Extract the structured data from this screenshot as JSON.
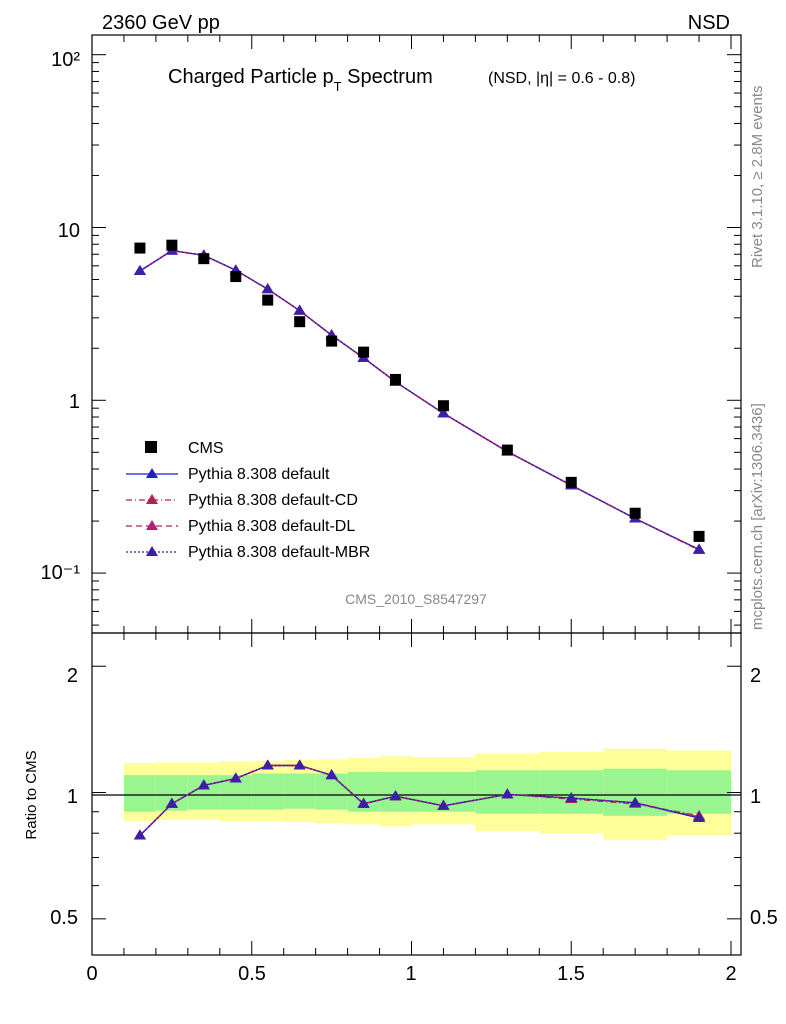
{
  "header": {
    "left": "2360 GeV pp",
    "right": "NSD"
  },
  "side_text": {
    "top": "Rivet 3.1.10, ≥ 2.8M events",
    "bottom": "mcplots.cern.ch [arXiv:1306.3436]"
  },
  "watermark": "CMS_2010_S8547297",
  "colors": {
    "cms": "#000000",
    "default": "#1f1fcc",
    "cd": "#b0224f",
    "dl": "#b0226f",
    "mbr": "#3a1fa8",
    "band_inner": "#99f58f",
    "band_outer": "#ffff99"
  },
  "chart_data": [
    {
      "type": "scatter",
      "title": "Charged Particle p",
      "title_sub": "T",
      "title_tail": " Spectrum",
      "title_extra": "(NSD, |η| = 0.6 - 0.8)",
      "y_scale": "log",
      "ylim": [
        0.045,
        130
      ],
      "xlim": [
        0,
        2.05
      ],
      "y_tick_labels": [
        "10⁻¹",
        "1",
        "10",
        "10²"
      ],
      "legend_position": "bottom-left",
      "series": [
        {
          "name": "CMS",
          "style": "markers-square",
          "x": [
            0.15,
            0.25,
            0.35,
            0.45,
            0.55,
            0.65,
            0.75,
            0.85,
            0.95,
            1.1,
            1.3,
            1.5,
            1.7,
            1.9
          ],
          "y": [
            7.6,
            7.9,
            6.6,
            5.2,
            3.8,
            2.85,
            2.2,
            1.9,
            1.32,
            0.93,
            0.515,
            0.335,
            0.222,
            0.163
          ]
        },
        {
          "name": "Pythia 8.308 default",
          "style": "solid",
          "x": [
            0.15,
            0.25,
            0.35,
            0.45,
            0.55,
            0.65,
            0.75,
            0.85,
            0.95,
            1.1,
            1.3,
            1.5,
            1.7,
            1.9
          ],
          "y": [
            5.6,
            7.35,
            6.9,
            5.65,
            4.4,
            3.3,
            2.38,
            1.76,
            1.28,
            0.84,
            0.505,
            0.322,
            0.207,
            0.137
          ]
        },
        {
          "name": "Pythia 8.308 default-CD",
          "style": "dashdot",
          "x": [
            0.15,
            0.25,
            0.35,
            0.45,
            0.55,
            0.65,
            0.75,
            0.85,
            0.95,
            1.1,
            1.3,
            1.5,
            1.7,
            1.9
          ],
          "y": [
            5.6,
            7.35,
            6.9,
            5.65,
            4.4,
            3.3,
            2.38,
            1.76,
            1.28,
            0.84,
            0.505,
            0.322,
            0.207,
            0.136
          ]
        },
        {
          "name": "Pythia 8.308 default-DL",
          "style": "dashed",
          "x": [
            0.15,
            0.25,
            0.35,
            0.45,
            0.55,
            0.65,
            0.75,
            0.85,
            0.95,
            1.1,
            1.3,
            1.5,
            1.7,
            1.9
          ],
          "y": [
            5.6,
            7.35,
            6.9,
            5.65,
            4.4,
            3.3,
            2.38,
            1.76,
            1.28,
            0.84,
            0.505,
            0.322,
            0.207,
            0.137
          ]
        },
        {
          "name": "Pythia 8.308 default-MBR",
          "style": "dotted",
          "x": [
            0.15,
            0.25,
            0.35,
            0.45,
            0.55,
            0.65,
            0.75,
            0.85,
            0.95,
            1.1,
            1.3,
            1.5,
            1.7,
            1.9
          ],
          "y": [
            5.6,
            7.35,
            6.9,
            5.65,
            4.4,
            3.3,
            2.38,
            1.76,
            1.28,
            0.84,
            0.505,
            0.322,
            0.207,
            0.137
          ]
        }
      ]
    },
    {
      "type": "line",
      "ylabel": "Ratio to CMS",
      "y_scale": "log",
      "ylim": [
        0.41,
        2.4
      ],
      "xlim": [
        0,
        2.05
      ],
      "x_ticks": [
        0,
        0.5,
        1,
        1.5,
        2
      ],
      "x_tick_labels": [
        "0",
        "0.5",
        "1",
        "1.5",
        "2"
      ],
      "y_ticks": [
        0.5,
        1,
        2
      ],
      "y_tick_labels": [
        "0.5",
        "1",
        "2"
      ],
      "bins": [
        [
          0.1,
          0.2
        ],
        [
          0.2,
          0.3
        ],
        [
          0.3,
          0.4
        ],
        [
          0.4,
          0.5
        ],
        [
          0.5,
          0.6
        ],
        [
          0.6,
          0.7
        ],
        [
          0.7,
          0.8
        ],
        [
          0.8,
          0.9
        ],
        [
          0.9,
          1.0
        ],
        [
          1.0,
          1.2
        ],
        [
          1.2,
          1.4
        ],
        [
          1.4,
          1.6
        ],
        [
          1.6,
          1.8
        ],
        [
          1.8,
          2.0
        ]
      ],
      "band_inner": [
        [
          0.9,
          1.1
        ],
        [
          0.905,
          1.1
        ],
        [
          0.91,
          1.1
        ],
        [
          0.91,
          1.1
        ],
        [
          0.91,
          1.11
        ],
        [
          0.915,
          1.11
        ],
        [
          0.91,
          1.11
        ],
        [
          0.9,
          1.12
        ],
        [
          0.9,
          1.12
        ],
        [
          0.9,
          1.12
        ],
        [
          0.89,
          1.13
        ],
        [
          0.89,
          1.13
        ],
        [
          0.88,
          1.14
        ],
        [
          0.89,
          1.13
        ]
      ],
      "band_outer": [
        [
          0.855,
          1.175
        ],
        [
          0.86,
          1.18
        ],
        [
          0.86,
          1.18
        ],
        [
          0.855,
          1.185
        ],
        [
          0.855,
          1.19
        ],
        [
          0.85,
          1.195
        ],
        [
          0.845,
          1.2
        ],
        [
          0.84,
          1.21
        ],
        [
          0.83,
          1.22
        ],
        [
          0.84,
          1.215
        ],
        [
          0.81,
          1.24
        ],
        [
          0.8,
          1.25
        ],
        [
          0.77,
          1.27
        ],
        [
          0.79,
          1.26
        ]
      ],
      "series": [
        {
          "name": "Pythia 8.308 default",
          "style": "solid",
          "x": [
            0.15,
            0.25,
            0.35,
            0.45,
            0.55,
            0.65,
            0.75,
            0.85,
            0.95,
            1.1,
            1.3,
            1.5,
            1.7,
            1.9
          ],
          "y": [
            0.79,
            0.94,
            1.04,
            1.08,
            1.16,
            1.16,
            1.1,
            0.94,
            0.98,
            0.93,
            0.99,
            0.97,
            0.945,
            0.87
          ]
        },
        {
          "name": "Pythia 8.308 default-CD",
          "style": "dashdot",
          "x": [
            0.15,
            0.25,
            0.35,
            0.45,
            0.55,
            0.65,
            0.75,
            0.85,
            0.95,
            1.1,
            1.3,
            1.5,
            1.7,
            1.9
          ],
          "y": [
            0.79,
            0.94,
            1.04,
            1.08,
            1.16,
            1.16,
            1.1,
            0.94,
            0.98,
            0.93,
            0.99,
            0.965,
            0.94,
            0.88
          ]
        },
        {
          "name": "Pythia 8.308 default-DL",
          "style": "dashed",
          "x": [
            0.15,
            0.25,
            0.35,
            0.45,
            0.55,
            0.65,
            0.75,
            0.85,
            0.95,
            1.1,
            1.3,
            1.5,
            1.7,
            1.9
          ],
          "y": [
            0.79,
            0.94,
            1.04,
            1.08,
            1.16,
            1.16,
            1.1,
            0.94,
            0.98,
            0.93,
            0.99,
            0.97,
            0.945,
            0.875
          ]
        },
        {
          "name": "Pythia 8.308 default-MBR",
          "style": "dotted",
          "x": [
            0.15,
            0.25,
            0.35,
            0.45,
            0.55,
            0.65,
            0.75,
            0.85,
            0.95,
            1.1,
            1.3,
            1.5,
            1.7,
            1.9
          ],
          "y": [
            0.79,
            0.94,
            1.04,
            1.08,
            1.16,
            1.16,
            1.1,
            0.94,
            0.98,
            0.93,
            0.99,
            0.97,
            0.945,
            0.87
          ]
        }
      ]
    }
  ]
}
